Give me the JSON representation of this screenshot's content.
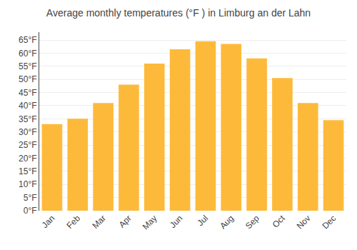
{
  "chart_data": {
    "type": "bar",
    "title": "Average monthly temperatures (°F ) in Limburg an der Lahn",
    "categories": [
      "Jan",
      "Feb",
      "Mar",
      "Apr",
      "May",
      "Jun",
      "Jul",
      "Aug",
      "Sep",
      "Oct",
      "Nov",
      "Dec"
    ],
    "values": [
      33,
      35,
      41,
      48,
      56,
      61.5,
      64.5,
      63.5,
      58,
      50.5,
      41,
      34.5
    ],
    "color": "#FDBA3A",
    "ylim": [
      0,
      68
    ],
    "yticks": [
      {
        "value": 0,
        "label": "0°F"
      },
      {
        "value": 5,
        "label": "5°F"
      },
      {
        "value": 10,
        "label": "10°F"
      },
      {
        "value": 15,
        "label": "15°F"
      },
      {
        "value": 20,
        "label": "20°F"
      },
      {
        "value": 25,
        "label": "25°F"
      },
      {
        "value": 30,
        "label": "30°F"
      },
      {
        "value": 35,
        "label": "35°F"
      },
      {
        "value": 40,
        "label": "40°F"
      },
      {
        "value": 45,
        "label": "45°F"
      },
      {
        "value": 50,
        "label": "50°F"
      },
      {
        "value": 55,
        "label": "55°F"
      },
      {
        "value": 60,
        "label": "60°F"
      },
      {
        "value": 65,
        "label": "65°F"
      }
    ],
    "grid": true
  }
}
